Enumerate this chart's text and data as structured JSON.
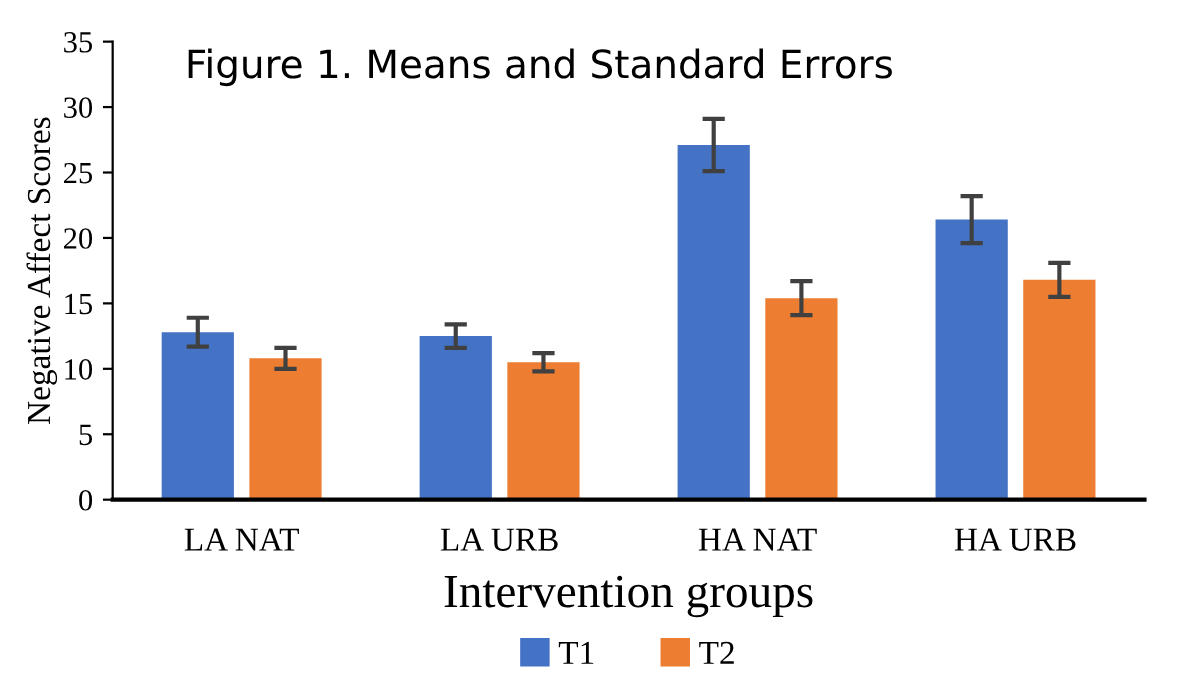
{
  "chart_data": {
    "type": "bar",
    "title": "Figure 1. Means and Standard Errors",
    "xlabel": "Intervention groups",
    "ylabel": "Negative Affect Scores",
    "categories": [
      "LA NAT",
      "LA URB",
      "HA NAT",
      "HA URB"
    ],
    "series": [
      {
        "name": "T1",
        "color": "#4472c4",
        "values": [
          12.8,
          12.5,
          27.1,
          21.4
        ],
        "errors": [
          1.1,
          0.9,
          2.0,
          1.8
        ]
      },
      {
        "name": "T2",
        "color": "#ed7d31",
        "values": [
          10.8,
          10.5,
          15.4,
          16.8
        ],
        "errors": [
          0.8,
          0.7,
          1.3,
          1.3
        ]
      }
    ],
    "ylim": [
      0,
      35
    ],
    "yticks": [
      0,
      5,
      10,
      15,
      20,
      25,
      30,
      35
    ],
    "grid": false,
    "legend": "bottom"
  }
}
